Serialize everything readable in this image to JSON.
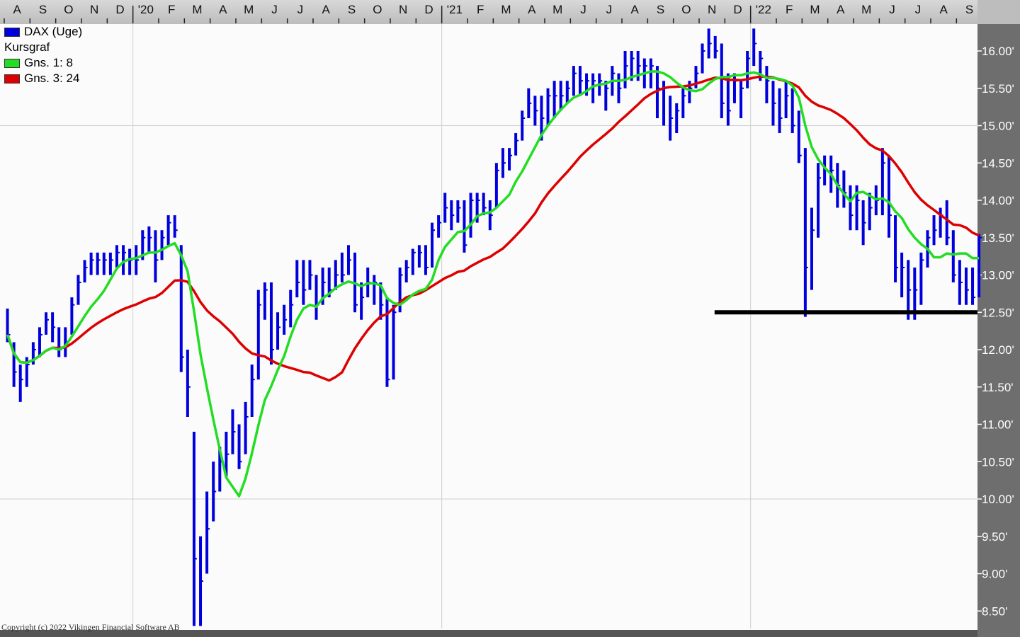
{
  "chart_data": {
    "type": "ohlc-bar",
    "title": "",
    "xlabel": "",
    "ylabel": "",
    "ylim": [
      8.27,
      16.35
    ],
    "y_ticks": [
      "16.00'",
      "15.50'",
      "15.00'",
      "14.50'",
      "14.00'",
      "13.50'",
      "13.00'",
      "12.50'",
      "12.00'",
      "11.50'",
      "11.00'",
      "10.50'",
      "10.00'",
      "9.50'",
      "9.00'",
      "8.50'"
    ],
    "y_tick_values": [
      16,
      15.5,
      15,
      14.5,
      14,
      13.5,
      13,
      12.5,
      12,
      11.5,
      11,
      10.5,
      10,
      9.5,
      9,
      8.5
    ],
    "grid": {
      "horizontal": [
        15,
        10
      ],
      "vertical": "year boundaries"
    },
    "months": [
      "2019-08",
      "2019-09",
      "2019-10",
      "2019-11",
      "2019-12",
      "2020-01",
      "2020-02",
      "2020-03",
      "2020-04",
      "2020-05",
      "2020-06",
      "2020-07",
      "2020-08",
      "2020-09",
      "2020-10",
      "2020-11",
      "2020-12",
      "2021-01",
      "2021-02",
      "2021-03",
      "2021-04",
      "2021-05",
      "2021-06",
      "2021-07",
      "2021-08",
      "2021-09",
      "2021-10",
      "2021-11",
      "2021-12",
      "2022-01",
      "2022-02",
      "2022-03",
      "2022-04",
      "2022-05",
      "2022-06",
      "2022-07",
      "2022-08",
      "2022-09"
    ],
    "month_labels": [
      "A",
      "S",
      "O",
      "N",
      "D",
      "'20",
      "F",
      "M",
      "A",
      "M",
      "J",
      "J",
      "A",
      "S",
      "O",
      "N",
      "D",
      "'21",
      "F",
      "M",
      "A",
      "M",
      "J",
      "J",
      "A",
      "S",
      "O",
      "N",
      "D",
      "'22",
      "F",
      "M",
      "A",
      "M",
      "J",
      "J",
      "A",
      "S"
    ],
    "bars_hlc_per_week": [
      [
        12.55,
        12.1,
        12.2
      ],
      [
        12.1,
        11.5,
        11.7
      ],
      [
        11.8,
        11.3,
        11.6
      ],
      [
        11.9,
        11.5,
        11.8
      ],
      [
        12.1,
        11.8,
        12.0
      ],
      [
        12.3,
        11.9,
        12.2
      ],
      [
        12.5,
        12.2,
        12.4
      ],
      [
        12.5,
        12.1,
        12.3
      ],
      [
        12.3,
        11.9,
        12.0
      ],
      [
        12.3,
        11.9,
        12.1
      ],
      [
        12.7,
        12.2,
        12.6
      ],
      [
        13.0,
        12.6,
        12.9
      ],
      [
        13.2,
        12.9,
        13.1
      ],
      [
        13.3,
        13.0,
        13.2
      ],
      [
        13.3,
        13.0,
        13.2
      ],
      [
        13.3,
        13.0,
        13.2
      ],
      [
        13.3,
        13.0,
        13.2
      ],
      [
        13.4,
        13.1,
        13.3
      ],
      [
        13.4,
        13.0,
        13.3
      ],
      [
        13.35,
        13.0,
        13.2
      ],
      [
        13.4,
        13.0,
        13.2
      ],
      [
        13.6,
        13.2,
        13.5
      ],
      [
        13.65,
        13.3,
        13.5
      ],
      [
        13.6,
        12.9,
        13.2
      ],
      [
        13.6,
        13.2,
        13.5
      ],
      [
        13.8,
        13.4,
        13.7
      ],
      [
        13.8,
        13.5,
        13.6
      ],
      [
        13.4,
        11.7,
        11.9
      ],
      [
        12.0,
        11.1,
        11.5
      ],
      [
        10.9,
        8.3,
        9.2
      ],
      [
        9.5,
        8.3,
        8.9
      ],
      [
        10.1,
        9.0,
        9.6
      ],
      [
        10.5,
        9.7,
        10.1
      ],
      [
        10.7,
        10.1,
        10.5
      ],
      [
        10.9,
        10.3,
        10.6
      ],
      [
        11.2,
        10.6,
        10.9
      ],
      [
        11.0,
        10.4,
        10.5
      ],
      [
        11.3,
        10.6,
        11.1
      ],
      [
        11.8,
        11.1,
        11.6
      ],
      [
        12.8,
        11.6,
        12.6
      ],
      [
        12.9,
        12.4,
        12.8
      ],
      [
        12.9,
        11.8,
        12.0
      ],
      [
        12.5,
        12.0,
        12.3
      ],
      [
        12.6,
        12.2,
        12.4
      ],
      [
        12.8,
        12.3,
        12.6
      ],
      [
        13.2,
        12.7,
        12.9
      ],
      [
        13.2,
        12.6,
        12.8
      ],
      [
        13.2,
        12.8,
        13.0
      ],
      [
        13.0,
        12.4,
        12.6
      ],
      [
        13.1,
        12.6,
        12.9
      ],
      [
        13.1,
        12.7,
        12.8
      ],
      [
        13.2,
        12.8,
        13.0
      ],
      [
        13.3,
        12.9,
        13.0
      ],
      [
        13.4,
        13.0,
        13.2
      ],
      [
        13.3,
        12.5,
        12.6
      ],
      [
        12.9,
        12.4,
        12.7
      ],
      [
        13.1,
        12.7,
        12.9
      ],
      [
        13.0,
        12.6,
        12.9
      ],
      [
        12.9,
        12.4,
        12.6
      ],
      [
        12.7,
        11.5,
        11.6
      ],
      [
        12.6,
        11.6,
        12.5
      ],
      [
        13.1,
        12.5,
        13.0
      ],
      [
        13.2,
        12.9,
        13.1
      ],
      [
        13.35,
        13.0,
        13.3
      ],
      [
        13.4,
        13.1,
        13.3
      ],
      [
        13.4,
        13.0,
        13.1
      ],
      [
        13.7,
        13.1,
        13.6
      ],
      [
        13.8,
        13.5,
        13.7
      ],
      [
        14.1,
        13.7,
        13.9
      ],
      [
        14.0,
        13.6,
        13.8
      ],
      [
        14.0,
        13.7,
        13.9
      ],
      [
        14.0,
        13.3,
        13.4
      ],
      [
        14.1,
        13.5,
        14.0
      ],
      [
        14.1,
        13.7,
        14.0
      ],
      [
        14.1,
        13.8,
        13.9
      ],
      [
        14.0,
        13.6,
        13.8
      ],
      [
        14.5,
        13.9,
        14.4
      ],
      [
        14.7,
        14.3,
        14.5
      ],
      [
        14.7,
        14.4,
        14.6
      ],
      [
        14.9,
        14.6,
        14.8
      ],
      [
        15.2,
        14.8,
        15.1
      ],
      [
        15.5,
        15.1,
        15.3
      ],
      [
        15.4,
        15.0,
        15.2
      ],
      [
        15.4,
        14.8,
        15.1
      ],
      [
        15.5,
        15.0,
        15.4
      ],
      [
        15.6,
        15.1,
        15.4
      ],
      [
        15.6,
        15.2,
        15.4
      ],
      [
        15.6,
        15.3,
        15.5
      ],
      [
        15.8,
        15.4,
        15.7
      ],
      [
        15.8,
        15.4,
        15.6
      ],
      [
        15.7,
        15.4,
        15.6
      ],
      [
        15.7,
        15.3,
        15.6
      ],
      [
        15.7,
        15.4,
        15.6
      ],
      [
        15.6,
        15.2,
        15.5
      ],
      [
        15.8,
        15.4,
        15.7
      ],
      [
        15.7,
        15.3,
        15.5
      ],
      [
        16.0,
        15.5,
        15.8
      ],
      [
        16.0,
        15.6,
        15.9
      ],
      [
        16.0,
        15.6,
        15.8
      ],
      [
        15.9,
        15.5,
        15.8
      ],
      [
        15.9,
        15.5,
        15.8
      ],
      [
        15.8,
        15.1,
        15.5
      ],
      [
        15.6,
        15.0,
        15.5
      ],
      [
        15.4,
        14.8,
        15.1
      ],
      [
        15.3,
        14.9,
        15.2
      ],
      [
        15.5,
        15.1,
        15.4
      ],
      [
        15.6,
        15.3,
        15.5
      ],
      [
        15.8,
        15.5,
        15.7
      ],
      [
        16.1,
        15.7,
        16.0
      ],
      [
        16.3,
        15.9,
        16.1
      ],
      [
        16.2,
        15.9,
        16.0
      ],
      [
        16.1,
        15.1,
        15.3
      ],
      [
        15.7,
        15.0,
        15.2
      ],
      [
        15.7,
        15.3,
        15.6
      ],
      [
        15.6,
        15.1,
        15.5
      ],
      [
        16.0,
        15.5,
        15.9
      ],
      [
        16.3,
        15.8,
        16.1
      ],
      [
        16.0,
        15.6,
        15.9
      ],
      [
        15.8,
        15.3,
        15.6
      ],
      [
        15.6,
        15.0,
        15.3
      ],
      [
        15.5,
        14.9,
        15.1
      ],
      [
        15.6,
        15.1,
        15.4
      ],
      [
        15.5,
        14.9,
        15.0
      ],
      [
        15.2,
        14.5,
        14.6
      ],
      [
        14.7,
        12.44,
        13.1
      ],
      [
        13.9,
        12.8,
        13.6
      ],
      [
        14.5,
        13.5,
        14.3
      ],
      [
        14.6,
        14.2,
        14.4
      ],
      [
        14.6,
        14.1,
        14.4
      ],
      [
        14.5,
        13.9,
        14.2
      ],
      [
        14.4,
        13.9,
        14.1
      ],
      [
        14.2,
        13.6,
        13.8
      ],
      [
        14.2,
        13.6,
        14.0
      ],
      [
        14.0,
        13.4,
        13.7
      ],
      [
        14.1,
        13.6,
        13.9
      ],
      [
        14.2,
        13.8,
        14.0
      ],
      [
        14.7,
        13.8,
        14.5
      ],
      [
        14.6,
        13.5,
        13.8
      ],
      [
        13.8,
        12.9,
        13.1
      ],
      [
        13.3,
        12.7,
        13.1
      ],
      [
        13.2,
        12.4,
        12.8
      ],
      [
        13.1,
        12.4,
        12.8
      ],
      [
        13.3,
        12.6,
        13.2
      ],
      [
        13.6,
        13.1,
        13.5
      ],
      [
        13.8,
        13.4,
        13.6
      ],
      [
        13.9,
        13.5,
        13.8
      ],
      [
        14.0,
        13.4,
        13.5
      ],
      [
        13.6,
        12.9,
        13.0
      ],
      [
        13.2,
        12.6,
        12.9
      ],
      [
        13.1,
        12.6,
        12.8
      ],
      [
        13.1,
        12.6,
        12.7
      ],
      [
        13.55,
        12.7,
        13.5
      ]
    ],
    "series": [
      {
        "name": "DAX (Uge)",
        "type": "bar",
        "color": "#0000dd"
      },
      {
        "name": "Gns. 1: 8",
        "type": "moving-average",
        "period": 8,
        "color": "#22dd22"
      },
      {
        "name": "Gns. 3: 24",
        "type": "moving-average",
        "period": 24,
        "color": "#dd0000"
      }
    ],
    "annotations": [
      {
        "type": "horizontal-line",
        "y": 12.5,
        "from_month": "2021-11",
        "color": "#000000"
      }
    ],
    "legend_placement": "top-left"
  },
  "legend": {
    "series0": "DAX (Uge)",
    "subtitle": "Kursgraf",
    "series1": "Gns. 1: 8",
    "series2": "Gns. 3: 24"
  },
  "copyright": "Copyright (c) 2022 Vikingen Financial Software AB"
}
